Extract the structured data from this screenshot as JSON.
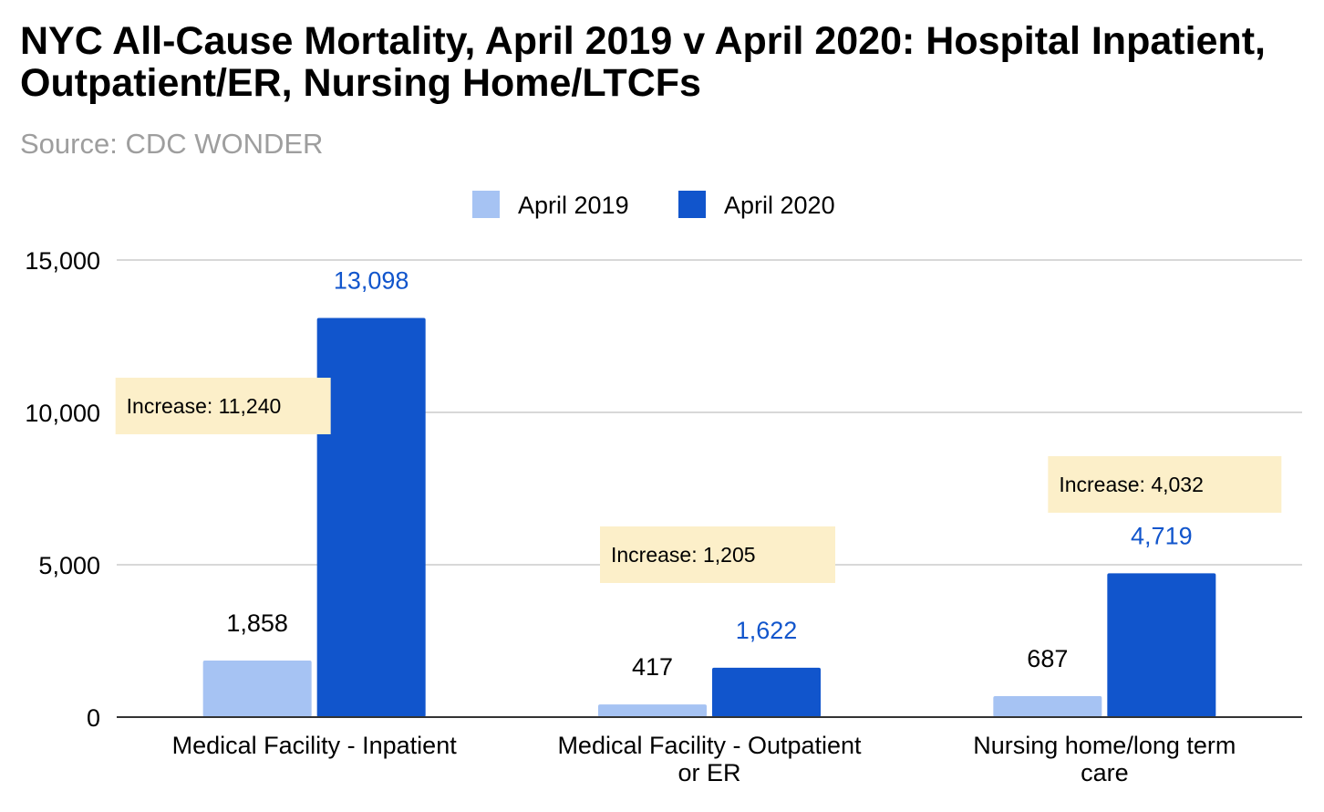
{
  "chart_data": {
    "type": "bar",
    "title": "NYC All-Cause Mortality, April 2019 v April 2020: Hospital Inpatient, Outpatient/ER, Nursing Home/LTCFs",
    "subtitle": "Source: CDC WONDER",
    "categories": [
      [
        "Medical Facility - Inpatient"
      ],
      [
        "Medical Facility - Outpatient",
        "or ER"
      ],
      [
        "Nursing home/long term",
        "care"
      ]
    ],
    "series": [
      {
        "name": "April 2019",
        "color": "#a6c3f3",
        "label_color": "#000000",
        "values": [
          1858,
          417,
          687
        ],
        "labels": [
          "1,858",
          "417",
          "687"
        ]
      },
      {
        "name": "April 2020",
        "color": "#1155cc",
        "label_color": "#1155cc",
        "values": [
          13098,
          1622,
          4719
        ],
        "labels": [
          "13,098",
          "1,622",
          "4,719"
        ]
      }
    ],
    "ylim": [
      0,
      15000
    ],
    "yticks": [
      0,
      5000,
      10000,
      15000
    ],
    "ytick_labels": [
      "0",
      "5,000",
      "10,000",
      "15,000"
    ],
    "xlabel": "",
    "ylabel": "",
    "grid": true,
    "legend_position": "top",
    "annotations": [
      {
        "text": "Increase: 11,240",
        "category": 0
      },
      {
        "text": "Increase: 1,205",
        "category": 1
      },
      {
        "text": "Increase: 4,032",
        "category": 2
      }
    ],
    "annotation_bg": "#fcefc9"
  }
}
